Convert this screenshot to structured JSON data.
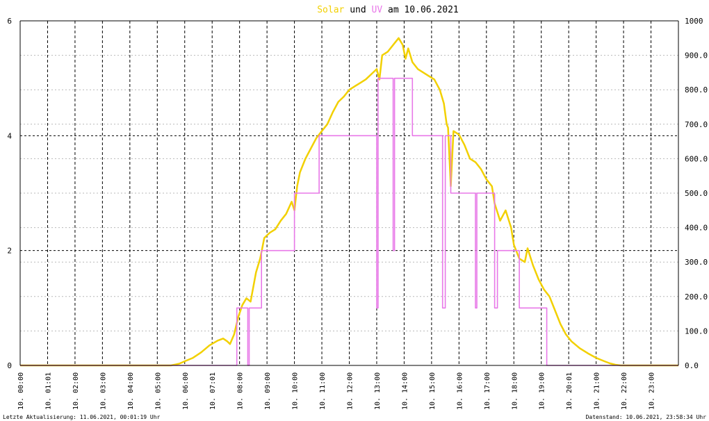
{
  "chart_data": {
    "type": "line",
    "title": {
      "series1": "Solar",
      "connector": "und",
      "series2": "UV",
      "date_part": "am 10.06.2021"
    },
    "y_left": {
      "min": 0,
      "max": 6,
      "ticks": [
        "0",
        "2",
        "4",
        "6"
      ]
    },
    "y_right": {
      "min": 0,
      "max": 1000,
      "ticks": [
        "0.0",
        "100.0",
        "200.0",
        "300.0",
        "400.0",
        "500.0",
        "600.0",
        "700.0",
        "800.0",
        "900.0",
        "1000"
      ]
    },
    "x_range": [
      0,
      24
    ],
    "x_ticks": [
      {
        "t": 0,
        "label": "10. 00:00"
      },
      {
        "t": 1,
        "label": "10. 01:01"
      },
      {
        "t": 2,
        "label": "10. 02:00"
      },
      {
        "t": 3,
        "label": "10. 03:00"
      },
      {
        "t": 4,
        "label": "10. 04:00"
      },
      {
        "t": 5,
        "label": "10. 05:00"
      },
      {
        "t": 6,
        "label": "10. 06:00"
      },
      {
        "t": 7,
        "label": "10. 07:01"
      },
      {
        "t": 8,
        "label": "10. 08:00"
      },
      {
        "t": 9,
        "label": "10. 09:00"
      },
      {
        "t": 10,
        "label": "10. 10:00"
      },
      {
        "t": 11,
        "label": "10. 11:00"
      },
      {
        "t": 12,
        "label": "10. 12:00"
      },
      {
        "t": 13,
        "label": "10. 13:00"
      },
      {
        "t": 14,
        "label": "10. 14:00"
      },
      {
        "t": 15,
        "label": "10. 15:00"
      },
      {
        "t": 16,
        "label": "10. 16:00"
      },
      {
        "t": 17,
        "label": "10. 17:00"
      },
      {
        "t": 18,
        "label": "10. 18:00"
      },
      {
        "t": 19,
        "label": "10. 19:00"
      },
      {
        "t": 20,
        "label": "10. 20:01"
      },
      {
        "t": 21,
        "label": "10. 21:00"
      },
      {
        "t": 22,
        "label": "10. 22:00"
      },
      {
        "t": 23,
        "label": "10. 23:00"
      }
    ],
    "grid": true,
    "series": [
      {
        "name": "Solar",
        "axis": "right",
        "color": "#f2d000",
        "points": [
          [
            0.0,
            0
          ],
          [
            5.5,
            0
          ],
          [
            5.8,
            5
          ],
          [
            6.0,
            12
          ],
          [
            6.3,
            22
          ],
          [
            6.6,
            38
          ],
          [
            6.9,
            58
          ],
          [
            7.2,
            72
          ],
          [
            7.4,
            78
          ],
          [
            7.55,
            70
          ],
          [
            7.65,
            62
          ],
          [
            7.8,
            90
          ],
          [
            7.95,
            140
          ],
          [
            8.1,
            175
          ],
          [
            8.25,
            195
          ],
          [
            8.4,
            185
          ],
          [
            8.6,
            270
          ],
          [
            8.75,
            310
          ],
          [
            8.9,
            370
          ],
          [
            9.1,
            385
          ],
          [
            9.3,
            395
          ],
          [
            9.5,
            420
          ],
          [
            9.7,
            440
          ],
          [
            9.9,
            475
          ],
          [
            10.0,
            450
          ],
          [
            10.1,
            520
          ],
          [
            10.2,
            560
          ],
          [
            10.4,
            600
          ],
          [
            10.6,
            630
          ],
          [
            10.8,
            660
          ],
          [
            11.0,
            680
          ],
          [
            11.2,
            700
          ],
          [
            11.4,
            735
          ],
          [
            11.6,
            765
          ],
          [
            11.8,
            780
          ],
          [
            12.0,
            800
          ],
          [
            12.2,
            810
          ],
          [
            12.4,
            820
          ],
          [
            12.6,
            830
          ],
          [
            12.8,
            845
          ],
          [
            13.0,
            860
          ],
          [
            13.1,
            830
          ],
          [
            13.2,
            900
          ],
          [
            13.4,
            910
          ],
          [
            13.6,
            930
          ],
          [
            13.8,
            950
          ],
          [
            13.95,
            930
          ],
          [
            14.05,
            890
          ],
          [
            14.15,
            920
          ],
          [
            14.3,
            880
          ],
          [
            14.5,
            860
          ],
          [
            14.7,
            850
          ],
          [
            14.9,
            840
          ],
          [
            15.1,
            830
          ],
          [
            15.3,
            800
          ],
          [
            15.45,
            760
          ],
          [
            15.55,
            700
          ],
          [
            15.6,
            690
          ],
          [
            15.7,
            520
          ],
          [
            15.8,
            680
          ],
          [
            16.0,
            670
          ],
          [
            16.2,
            640
          ],
          [
            16.4,
            600
          ],
          [
            16.6,
            590
          ],
          [
            16.8,
            570
          ],
          [
            17.0,
            540
          ],
          [
            17.2,
            520
          ],
          [
            17.3,
            470
          ],
          [
            17.5,
            420
          ],
          [
            17.7,
            450
          ],
          [
            17.9,
            400
          ],
          [
            18.0,
            350
          ],
          [
            18.2,
            310
          ],
          [
            18.4,
            300
          ],
          [
            18.5,
            340
          ],
          [
            18.7,
            290
          ],
          [
            18.9,
            250
          ],
          [
            19.1,
            220
          ],
          [
            19.3,
            200
          ],
          [
            19.5,
            160
          ],
          [
            19.7,
            120
          ],
          [
            19.9,
            90
          ],
          [
            20.1,
            70
          ],
          [
            20.4,
            50
          ],
          [
            20.7,
            35
          ],
          [
            21.0,
            22
          ],
          [
            21.3,
            12
          ],
          [
            21.5,
            6
          ],
          [
            21.7,
            2
          ],
          [
            21.9,
            0
          ],
          [
            24.0,
            0
          ]
        ]
      },
      {
        "name": "UV",
        "axis": "left",
        "color": "#e878e8",
        "points": [
          [
            0,
            0
          ],
          [
            7.9,
            0
          ],
          [
            7.9,
            1
          ],
          [
            8.3,
            1
          ],
          [
            8.3,
            0
          ],
          [
            8.35,
            0
          ],
          [
            8.35,
            1
          ],
          [
            8.8,
            1
          ],
          [
            8.8,
            2
          ],
          [
            10.0,
            2
          ],
          [
            10.0,
            3
          ],
          [
            10.9,
            3
          ],
          [
            10.9,
            4
          ],
          [
            13.0,
            4
          ],
          [
            13.0,
            1
          ],
          [
            13.05,
            1
          ],
          [
            13.05,
            5
          ],
          [
            13.6,
            5
          ],
          [
            13.6,
            2
          ],
          [
            13.65,
            2
          ],
          [
            13.65,
            5
          ],
          [
            14.3,
            5
          ],
          [
            14.3,
            4
          ],
          [
            15.4,
            4
          ],
          [
            15.4,
            1
          ],
          [
            15.5,
            1
          ],
          [
            15.5,
            4
          ],
          [
            15.7,
            4
          ],
          [
            15.7,
            3
          ],
          [
            16.6,
            3
          ],
          [
            16.6,
            1
          ],
          [
            16.65,
            1
          ],
          [
            16.65,
            3
          ],
          [
            17.3,
            3
          ],
          [
            17.3,
            1
          ],
          [
            17.4,
            1
          ],
          [
            17.4,
            2
          ],
          [
            18.2,
            2
          ],
          [
            18.2,
            1
          ],
          [
            19.2,
            1
          ],
          [
            19.2,
            0
          ],
          [
            24.0,
            0
          ]
        ]
      }
    ]
  },
  "footer": {
    "left": "Letzte Aktualisierung: 11.06.2021, 00:01:19 Uhr",
    "right": "Datenstand: 10.06.2021, 23:58:34 Uhr"
  }
}
